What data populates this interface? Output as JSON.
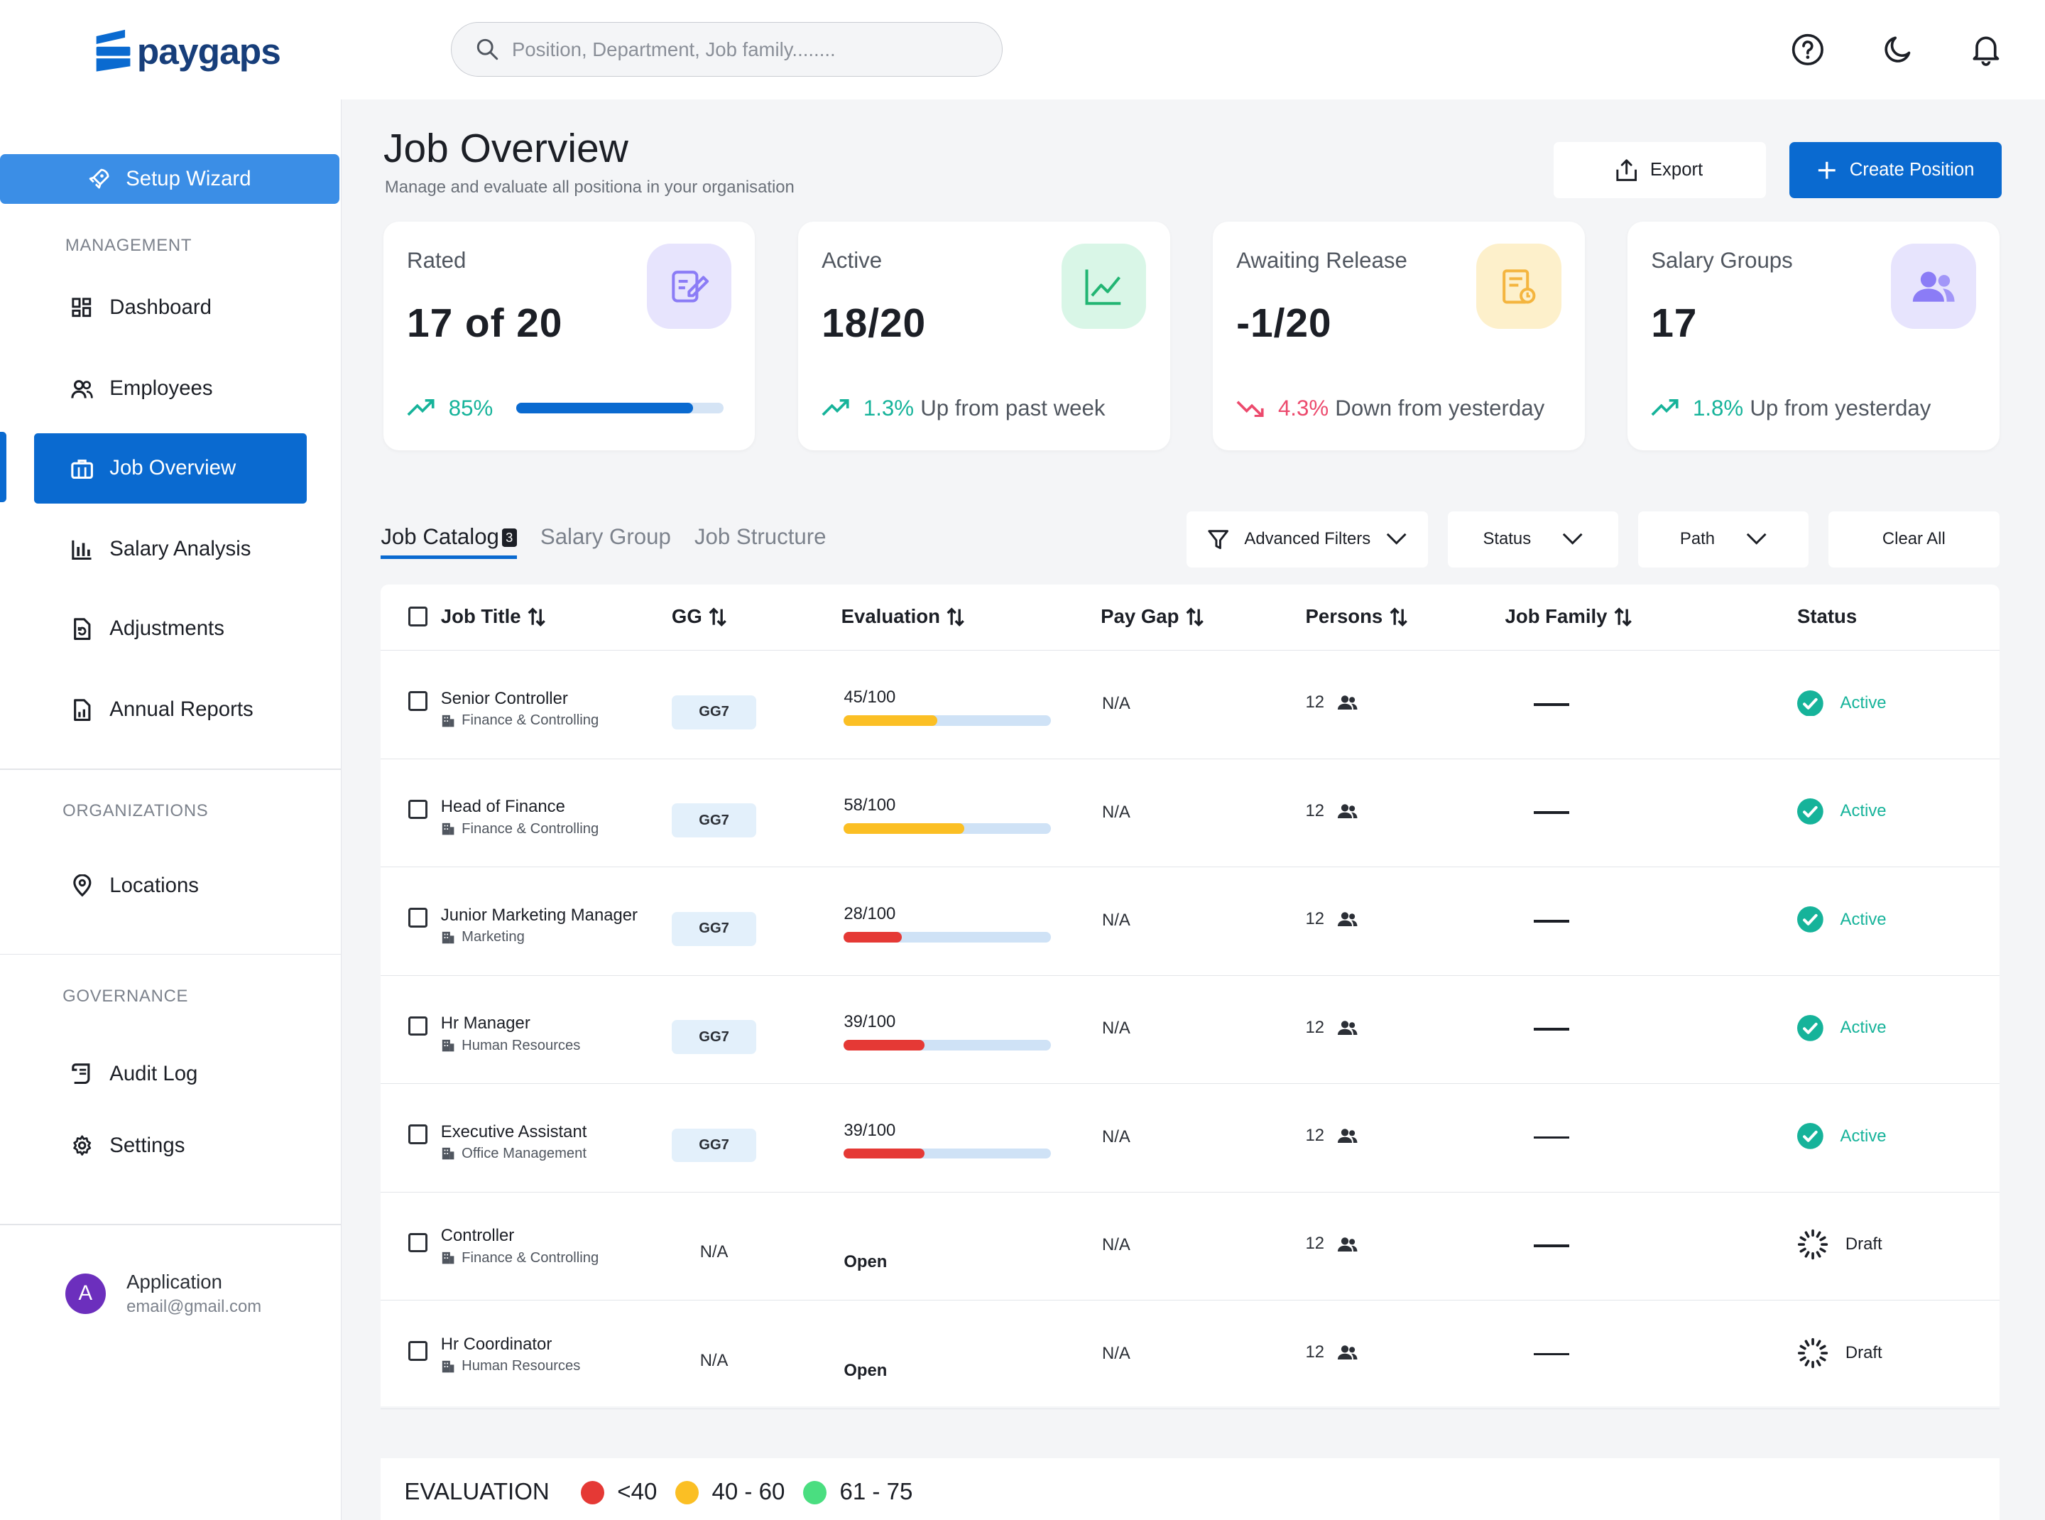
{
  "app": {
    "logo": "paygaps"
  },
  "search": {
    "placeholder": "Position, Department, Job family........"
  },
  "sidebar": {
    "wizard": "Setup Wizard",
    "sections": {
      "management": "MANAGEMENT",
      "organizations": "ORGANIZATIONS",
      "governance": "GOVERNANCE"
    },
    "items": [
      {
        "label": "Dashboard",
        "icon": "grid-icon"
      },
      {
        "label": "Employees",
        "icon": "users-icon"
      },
      {
        "label": "Job Overview",
        "icon": "briefcase-icon",
        "active": true
      },
      {
        "label": "Salary Analysis",
        "icon": "bar-chart-icon"
      },
      {
        "label": "Adjustments",
        "icon": "file-refresh-icon"
      },
      {
        "label": "Annual Reports",
        "icon": "report-icon"
      },
      {
        "label": "Locations",
        "icon": "location-pin-icon"
      },
      {
        "label": "Audit Log",
        "icon": "scroll-icon"
      },
      {
        "label": "Settings",
        "icon": "gear-icon"
      }
    ],
    "user": {
      "initial": "A",
      "name": "Application",
      "email": "email@gmail.com"
    }
  },
  "header": {
    "title": "Job Overview",
    "subtitle": "Manage and evaluate all positiona in your organisation",
    "export": "Export",
    "create": "Create Position"
  },
  "cards": [
    {
      "label": "Rated",
      "value": "17 of 20",
      "trend": "85%",
      "progress": 0.85,
      "color": "#8b7cf6"
    },
    {
      "label": "Active",
      "value": "18/20",
      "trend": "1.3%",
      "trend_text": "Up from past week",
      "color": "#22b573"
    },
    {
      "label": "Awaiting Release",
      "value": "-1/20",
      "trend": "4.3%",
      "trend_text": "Down from yesterday",
      "color": "#f4b53f"
    },
    {
      "label": "Salary Groups",
      "value": "17",
      "trend": "1.8%",
      "trend_text": "Up from yesterday",
      "color": "#8b7cf6"
    }
  ],
  "tabs": [
    {
      "label": "Job Catalog",
      "count": "3",
      "active": true
    },
    {
      "label": "Salary Group"
    },
    {
      "label": "Job Structure"
    }
  ],
  "filters": {
    "advanced": "Advanced Filters",
    "status": "Status",
    "path": "Path",
    "clear": "Clear All"
  },
  "table": {
    "columns": [
      "Job Title",
      "GG",
      "Evaluation",
      "Pay Gap",
      "Persons",
      "Job Family",
      "Status"
    ],
    "rows": [
      {
        "title": "Senior Controller",
        "dept": "Finance & Controlling",
        "gg": "GG7",
        "eval": "45/100",
        "score": 45,
        "bar": "#fbbf24",
        "paygap": "N/A",
        "persons": "12",
        "status": "Active"
      },
      {
        "title": "Head of Finance",
        "dept": "Finance & Controlling",
        "gg": "GG7",
        "eval": "58/100",
        "score": 58,
        "bar": "#fbbf24",
        "paygap": "N/A",
        "persons": "12",
        "status": "Active"
      },
      {
        "title": "Junior Marketing Manager",
        "dept": "Marketing",
        "gg": "GG7",
        "eval": "28/100",
        "score": 28,
        "bar": "#e53935",
        "paygap": "N/A",
        "persons": "12",
        "status": "Active"
      },
      {
        "title": "Hr Manager",
        "dept": "Human Resources",
        "gg": "GG7",
        "eval": "39/100",
        "score": 39,
        "bar": "#e53935",
        "paygap": "N/A",
        "persons": "12",
        "status": "Active"
      },
      {
        "title": "Executive Assistant",
        "dept": "Office Management",
        "gg": "GG7",
        "eval": "39/100",
        "score": 39,
        "bar": "#e53935",
        "paygap": "N/A",
        "persons": "12",
        "status": "Active"
      },
      {
        "title": "Controller",
        "dept": "Finance & Controlling",
        "gg": "N/A",
        "eval": "Open",
        "paygap": "N/A",
        "persons": "12",
        "status": "Draft"
      },
      {
        "title": "Hr Coordinator",
        "dept": "Human Resources",
        "gg": "N/A",
        "eval": "Open",
        "paygap": "N/A",
        "persons": "12",
        "status": "Draft"
      }
    ]
  },
  "legend": {
    "title": "EVALUATION",
    "items": [
      {
        "label": "<40",
        "color": "#e53935"
      },
      {
        "label": "40 - 60",
        "color": "#fbbf24"
      },
      {
        "label": "61 - 75",
        "color": "#4ade80"
      }
    ]
  },
  "colors": {
    "accent": "#0a6ad0",
    "up": "#16b39a",
    "down": "#ec4a6d",
    "active": "#16b39a"
  }
}
